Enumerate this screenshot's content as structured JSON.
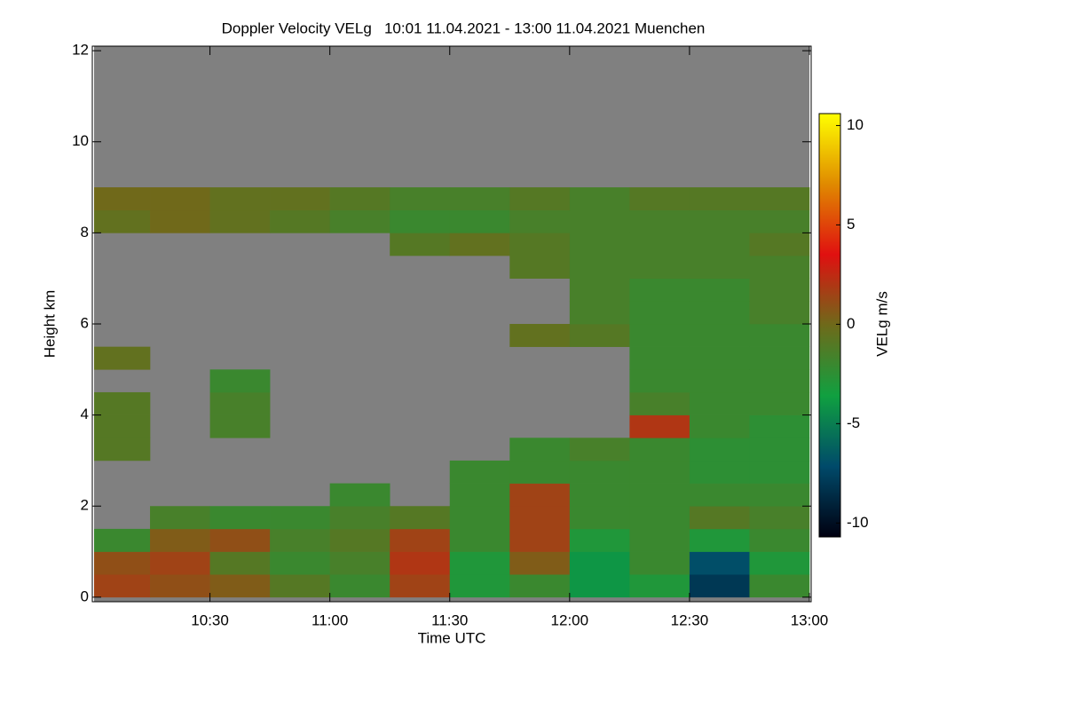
{
  "chart_data": {
    "type": "heatmap",
    "title": "Doppler Velocity VELg   10:01 11.04.2021 - 13:00 11.04.2021 Muenchen",
    "x_label": "Time UTC",
    "y_label": "Height km",
    "colorbar_label": "VELg m/s",
    "xlim": [
      "10:01",
      "13:00"
    ],
    "xticks": [
      "10:30",
      "11:00",
      "11:30",
      "12:00",
      "12:30",
      "13:00"
    ],
    "ylim": [
      -0.1,
      12.1
    ],
    "yticks": [
      0,
      2,
      4,
      6,
      8,
      10,
      12
    ],
    "zlim": [
      -10.7,
      10.6
    ],
    "zticks": [
      -10,
      -5,
      0,
      5,
      10
    ],
    "colormap": [
      "#000010",
      "#004a6a",
      "#10a040",
      "#6e6a1a",
      "#e01010",
      "#e08a00",
      "#ffff00"
    ],
    "background": "#808080",
    "xbins": [
      "10:01",
      "10:15",
      "10:30",
      "10:45",
      "11:00",
      "11:15",
      "11:30",
      "11:45",
      "12:00",
      "12:15",
      "12:30",
      "12:45",
      "13:00"
    ],
    "ybins": [
      0,
      0.5,
      1,
      1.5,
      2,
      2.5,
      3,
      3.5,
      4,
      4.5,
      5,
      5.5,
      6,
      6.5,
      7,
      7.5,
      8,
      8.5,
      9,
      9.5,
      10,
      10.5,
      11,
      11.5,
      12
    ],
    "z": [
      [
        1.5,
        1,
        0.5,
        -1,
        -2,
        1.5,
        -3,
        -2,
        -4,
        -3,
        -8,
        -2
      ],
      [
        1,
        1.5,
        -1,
        -2,
        -1.5,
        2,
        -3,
        0.5,
        -4,
        -2,
        -7,
        -3
      ],
      [
        -2,
        0.5,
        1,
        -1.5,
        -1,
        1.5,
        -2,
        1.5,
        -3,
        -2,
        -3,
        -2
      ],
      [
        null,
        -1.5,
        -2,
        -2,
        -1.5,
        -1,
        -2,
        1.5,
        -2,
        -2,
        -1,
        -1.5
      ],
      [
        null,
        null,
        null,
        null,
        -2,
        null,
        -2,
        1.5,
        -2,
        -2,
        -2,
        -2
      ],
      [
        null,
        null,
        null,
        null,
        null,
        null,
        -2,
        -2,
        -2,
        -2,
        -2.5,
        -2.5
      ],
      [
        -1,
        null,
        null,
        null,
        null,
        null,
        null,
        -2,
        -1.5,
        -2,
        -2.5,
        -2.5
      ],
      [
        -1,
        null,
        -1.5,
        null,
        null,
        null,
        null,
        null,
        null,
        2,
        -2,
        -2.5
      ],
      [
        -1,
        null,
        -1.5,
        null,
        null,
        null,
        null,
        null,
        null,
        -1.5,
        -2,
        -2
      ],
      [
        null,
        null,
        -2,
        null,
        null,
        null,
        null,
        null,
        null,
        -2,
        -2,
        -2
      ],
      [
        -0.5,
        null,
        null,
        null,
        null,
        null,
        null,
        null,
        null,
        -2,
        -2,
        -2
      ],
      [
        null,
        null,
        null,
        null,
        null,
        null,
        null,
        -0.5,
        -1,
        -2,
        -2,
        -2
      ],
      [
        null,
        null,
        null,
        null,
        null,
        null,
        null,
        null,
        -1.5,
        -2,
        -2,
        -1.5
      ],
      [
        null,
        null,
        null,
        null,
        null,
        null,
        null,
        null,
        -1.5,
        -2,
        -2,
        -1.5
      ],
      [
        null,
        null,
        null,
        null,
        null,
        null,
        null,
        -1,
        -1.5,
        -1.5,
        -1.5,
        -1.5
      ],
      [
        null,
        null,
        null,
        null,
        null,
        -1,
        -0.5,
        -1,
        -1.5,
        -1.5,
        -1.5,
        -1
      ],
      [
        -0.5,
        0,
        -0.5,
        -1,
        -1.5,
        -2,
        -2,
        -1.5,
        -1.5,
        -1.5,
        -1.5,
        -1.5
      ],
      [
        0,
        0,
        -0.5,
        -0.5,
        -1,
        -1.5,
        -1.5,
        -1,
        -1.5,
        -1,
        -1,
        -1
      ],
      [
        null,
        null,
        null,
        null,
        null,
        null,
        null,
        null,
        null,
        null,
        null,
        null
      ],
      [
        null,
        null,
        null,
        null,
        null,
        null,
        null,
        null,
        null,
        null,
        null,
        null
      ],
      [
        null,
        null,
        null,
        null,
        null,
        null,
        null,
        null,
        null,
        null,
        null,
        null
      ],
      [
        null,
        null,
        null,
        null,
        null,
        null,
        null,
        null,
        null,
        null,
        null,
        null
      ],
      [
        null,
        null,
        null,
        null,
        null,
        null,
        null,
        null,
        null,
        null,
        null,
        null
      ],
      [
        null,
        null,
        null,
        null,
        null,
        null,
        null,
        null,
        null,
        null,
        null,
        null
      ]
    ]
  }
}
